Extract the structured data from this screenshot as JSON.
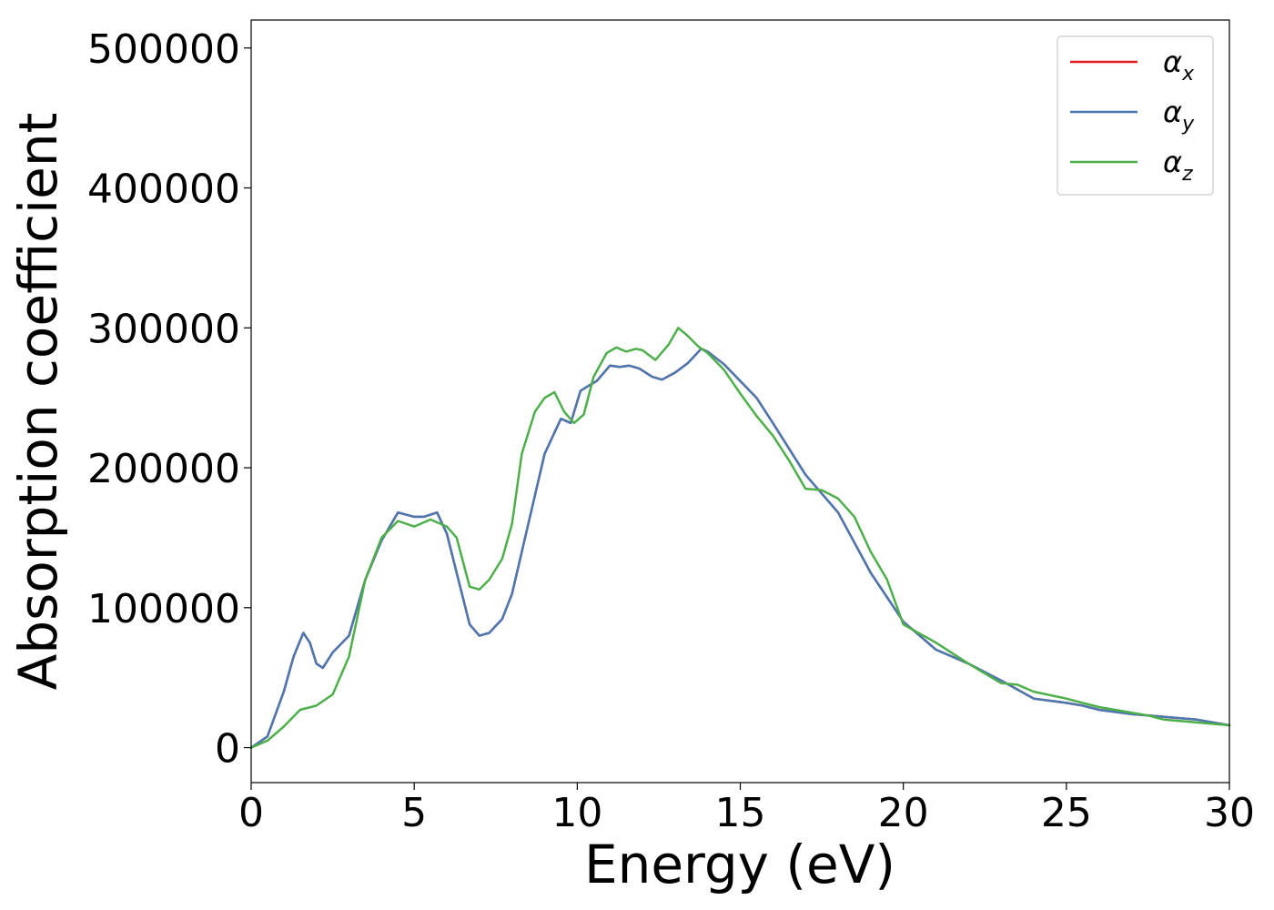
{
  "chart_data": {
    "type": "line",
    "xlabel": "Energy (eV)",
    "ylabel": "Absorption coefficient",
    "xlim": [
      0,
      30
    ],
    "ylim": [
      -25000,
      520000
    ],
    "x_ticks": [
      0,
      5,
      10,
      15,
      20,
      25,
      30
    ],
    "y_ticks": [
      0,
      100000,
      200000,
      300000,
      400000,
      500000
    ],
    "grid": false,
    "legend_position": "top-right",
    "series": [
      {
        "name": "αx",
        "legend_base": "α",
        "legend_sub": "x",
        "color": "#e41a1c",
        "x": [
          0,
          0.5,
          1.0,
          1.3,
          1.6,
          1.8,
          2.0,
          2.2,
          2.5,
          3.0,
          3.5,
          4.0,
          4.5,
          5.0,
          5.3,
          5.7,
          6.0,
          6.3,
          6.7,
          7.0,
          7.3,
          7.7,
          8.0,
          8.5,
          9.0,
          9.5,
          9.8,
          10.1,
          10.3,
          10.6,
          11.0,
          11.3,
          11.6,
          11.9,
          12.3,
          12.6,
          13.0,
          13.4,
          13.8,
          14.0,
          14.5,
          15.0,
          15.5,
          16.0,
          17.0,
          18.0,
          19.0,
          20.0,
          21.0,
          22.0,
          23.0,
          24.0,
          25.0,
          25.5,
          26.0,
          27.0,
          28.0,
          29.0,
          30.0
        ],
        "y": [
          0,
          8000,
          40000,
          65000,
          82000,
          75000,
          60000,
          57000,
          68000,
          80000,
          120000,
          148000,
          168000,
          165000,
          165000,
          168000,
          153000,
          125000,
          88000,
          80000,
          82000,
          92000,
          110000,
          160000,
          210000,
          235000,
          232000,
          255000,
          258000,
          262000,
          273000,
          272000,
          273000,
          271000,
          265000,
          263000,
          268000,
          275000,
          285000,
          283000,
          274000,
          262000,
          250000,
          232000,
          195000,
          168000,
          125000,
          90000,
          70000,
          60000,
          48000,
          35000,
          32000,
          30000,
          27000,
          24000,
          22000,
          20000,
          16000
        ]
      },
      {
        "name": "αy",
        "legend_base": "α",
        "legend_sub": "y",
        "color": "#4a78b0",
        "x": [
          0,
          0.5,
          1.0,
          1.3,
          1.6,
          1.8,
          2.0,
          2.2,
          2.5,
          3.0,
          3.5,
          4.0,
          4.5,
          5.0,
          5.3,
          5.7,
          6.0,
          6.3,
          6.7,
          7.0,
          7.3,
          7.7,
          8.0,
          8.5,
          9.0,
          9.5,
          9.8,
          10.1,
          10.3,
          10.6,
          11.0,
          11.3,
          11.6,
          11.9,
          12.3,
          12.6,
          13.0,
          13.4,
          13.8,
          14.0,
          14.5,
          15.0,
          15.5,
          16.0,
          17.0,
          18.0,
          19.0,
          20.0,
          21.0,
          22.0,
          23.0,
          24.0,
          25.0,
          25.5,
          26.0,
          27.0,
          28.0,
          29.0,
          30.0
        ],
        "y": [
          0,
          8000,
          40000,
          65000,
          82000,
          75000,
          60000,
          57000,
          68000,
          80000,
          120000,
          148000,
          168000,
          165000,
          165000,
          168000,
          153000,
          125000,
          88000,
          80000,
          82000,
          92000,
          110000,
          160000,
          210000,
          235000,
          232000,
          255000,
          258000,
          262000,
          273000,
          272000,
          273000,
          271000,
          265000,
          263000,
          268000,
          275000,
          285000,
          283000,
          274000,
          262000,
          250000,
          232000,
          195000,
          168000,
          125000,
          90000,
          70000,
          60000,
          48000,
          35000,
          32000,
          30000,
          27000,
          24000,
          22000,
          20000,
          16000
        ]
      },
      {
        "name": "αz",
        "legend_base": "α",
        "legend_sub": "z",
        "color": "#4daf4a",
        "x": [
          0,
          0.5,
          1.0,
          1.5,
          2.0,
          2.5,
          3.0,
          3.5,
          4.0,
          4.5,
          5.0,
          5.5,
          6.0,
          6.3,
          6.7,
          7.0,
          7.3,
          7.7,
          8.0,
          8.3,
          8.7,
          9.0,
          9.3,
          9.6,
          9.9,
          10.2,
          10.5,
          10.9,
          11.2,
          11.5,
          11.8,
          12.0,
          12.4,
          12.8,
          13.1,
          13.4,
          13.7,
          14.0,
          14.5,
          15.0,
          15.5,
          16.0,
          16.5,
          17.0,
          17.5,
          18.0,
          18.5,
          19.0,
          19.5,
          20.0,
          21.0,
          22.0,
          23.0,
          23.5,
          24.0,
          25.0,
          25.5,
          26.0,
          27.0,
          27.5,
          28.0,
          29.0,
          30.0
        ],
        "y": [
          0,
          5000,
          15000,
          27000,
          30000,
          38000,
          65000,
          120000,
          150000,
          162000,
          158000,
          163000,
          158000,
          150000,
          115000,
          113000,
          120000,
          135000,
          160000,
          210000,
          240000,
          250000,
          254000,
          240000,
          232000,
          238000,
          265000,
          282000,
          286000,
          283000,
          285000,
          284000,
          277000,
          288000,
          300000,
          294000,
          287000,
          282000,
          270000,
          253000,
          237000,
          223000,
          205000,
          185000,
          184000,
          178000,
          165000,
          140000,
          120000,
          88000,
          75000,
          60000,
          46000,
          45000,
          40000,
          35000,
          32000,
          29000,
          25000,
          23000,
          20000,
          18000,
          16000
        ]
      }
    ]
  }
}
